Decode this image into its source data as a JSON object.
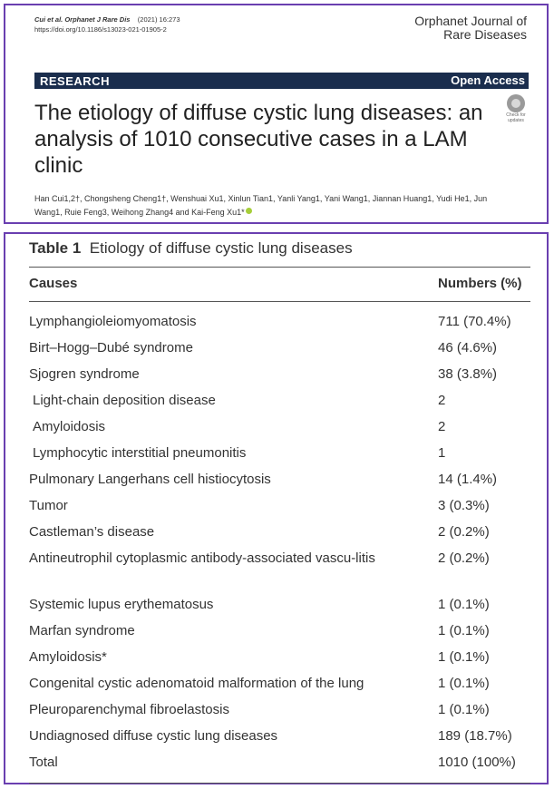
{
  "header": {
    "citation_journal": "Cui et al. Orphanet J Rare Dis",
    "citation_year": "(2021) 16:273",
    "doi": "https://doi.org/10.1186/s13023-021-01905-2",
    "journal_line1": "Orphanet Journal of",
    "journal_line2": "Rare Diseases",
    "section_label": "RESEARCH",
    "access_label": "Open Access",
    "title": "The etiology of diffuse cystic lung diseases: an analysis of 1010 consecutive cases in a LAM clinic",
    "badge_text": "Check for updates",
    "authors": "Han Cui1,2†, Chongsheng Cheng1†, Wenshuai Xu1, Xinlun Tian1, Yanli Yang1, Yani Wang1, Jiannan Huang1, Yudi He1, Jun Wang1, Ruie Feng3, Weihong Zhang4 and Kai-Feng Xu1*"
  },
  "table": {
    "caption_number": "Table 1",
    "caption_text": "Etiology of diffuse cystic lung diseases",
    "col_causes": "Causes",
    "col_numbers": "Numbers (%)",
    "rows": [
      {
        "cause": "Lymphangioleiomyomatosis",
        "value": "711 (70.4%)"
      },
      {
        "cause": "Birt–Hogg–Dubé syndrome",
        "value": "46 (4.6%)"
      },
      {
        "cause": "Sjogren syndrome",
        "value": "38 (3.8%)"
      },
      {
        "cause": "Light-chain deposition disease",
        "value": "2"
      },
      {
        "cause": "Amyloidosis",
        "value": "2"
      },
      {
        "cause": "Lymphocytic interstitial pneumonitis",
        "value": "1"
      },
      {
        "cause": "Pulmonary Langerhans cell histiocytosis",
        "value": "14 (1.4%)"
      },
      {
        "cause": "Tumor",
        "value": "3 (0.3%)"
      },
      {
        "cause": "Castleman’s disease",
        "value": "2 (0.2%)"
      },
      {
        "cause": "Antineutrophil cytoplasmic antibody-associated vascu-litis",
        "value": "2 (0.2%)"
      },
      {
        "cause": "Systemic lupus erythematosus",
        "value": "1 (0.1%)"
      },
      {
        "cause": "Marfan syndrome",
        "value": "1 (0.1%)"
      },
      {
        "cause": "Amyloidosis*",
        "value": "1 (0.1%)"
      },
      {
        "cause": "Congenital cystic adenomatoid malformation of the lung",
        "value": "1 (0.1%)"
      },
      {
        "cause": "Pleuroparenchymal fibroelastosis",
        "value": "1 (0.1%)"
      },
      {
        "cause": "Undiagnosed diffuse cystic lung diseases",
        "value": "189 (18.7%)"
      },
      {
        "cause": "Total",
        "value": "1010 (100%)"
      }
    ]
  }
}
